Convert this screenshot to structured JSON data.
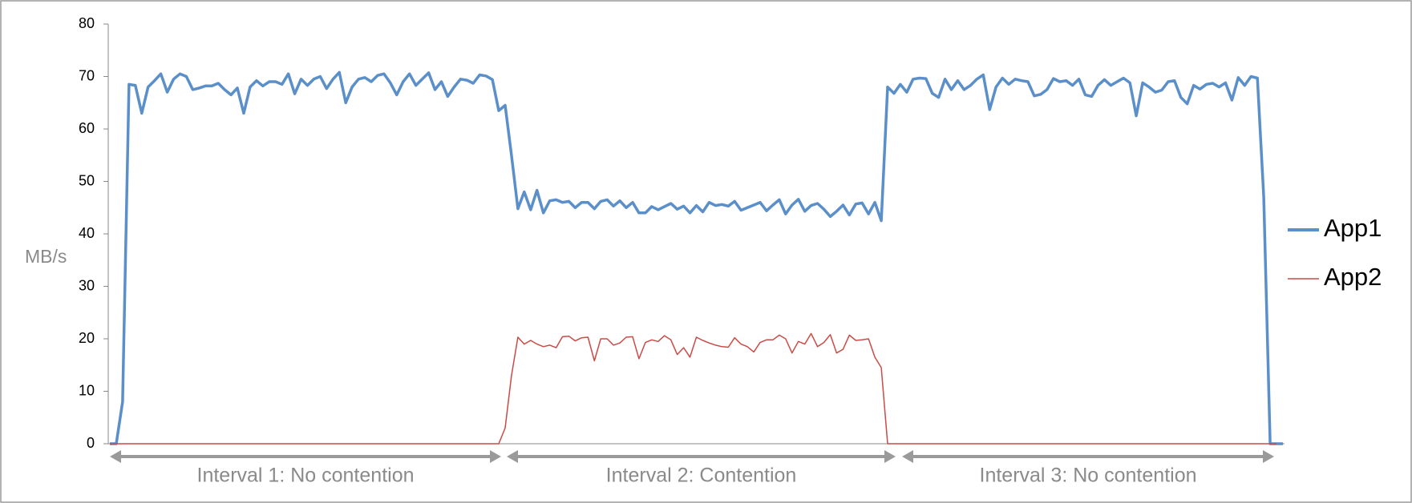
{
  "chart_data": {
    "type": "line",
    "y_label": "MB/s",
    "ylim": [
      0,
      80
    ],
    "yticks": [
      0,
      10,
      20,
      30,
      40,
      50,
      60,
      70,
      80
    ],
    "legend": "right",
    "annotations": [
      "Interval 1: No contention",
      "Interval 2: Contention",
      "Interval 3: No contention"
    ],
    "series": [
      {
        "name": "App1",
        "color": "#5b8fc9",
        "values": [
          0,
          0,
          8,
          68.5,
          68.3,
          63,
          68,
          69.2,
          70.5,
          67,
          69.5,
          70.5,
          70,
          67.5,
          67.8,
          68.2,
          68.2,
          68.7,
          67.5,
          66.5,
          67.8,
          63,
          68,
          69.2,
          68.2,
          69,
          69,
          68.5,
          70.5,
          66.7,
          69.5,
          68.3,
          69.5,
          70,
          67.7,
          69.5,
          70.8,
          65,
          68,
          69.5,
          69.8,
          69,
          70.2,
          70.5,
          68.8,
          66.5,
          69,
          70.5,
          68.3,
          69.5,
          70.7,
          67.5,
          69,
          66.2,
          68,
          69.5,
          69.3,
          68.7,
          70.3,
          70.1,
          69.4,
          63.5,
          64.5,
          55,
          44.8,
          48,
          44.6,
          48.3,
          44,
          46.3,
          46.5,
          46,
          46.2,
          45,
          46,
          46,
          44.8,
          46.2,
          46.5,
          45.3,
          46.3,
          45,
          46,
          44,
          44,
          45.2,
          44.6,
          45.2,
          45.8,
          44.7,
          45.3,
          44,
          45.4,
          44.2,
          46,
          45.4,
          45.6,
          45.3,
          46.2,
          44.5,
          45,
          45.5,
          46,
          44.4,
          45.5,
          46.5,
          43.8,
          45.5,
          46.6,
          44.3,
          45.4,
          45.8,
          44.7,
          43.3,
          44.3,
          45.5,
          43.6,
          45.7,
          45.9,
          43.8,
          46,
          42.5,
          68,
          66.8,
          68.5,
          67,
          69.5,
          69.7,
          69.6,
          66.8,
          66,
          69.5,
          67.5,
          69.2,
          67.5,
          68.3,
          69.5,
          70.3,
          63.7,
          68,
          69.7,
          68.5,
          69.5,
          69.2,
          69,
          66.3,
          66.6,
          67.5,
          69.6,
          69,
          69.2,
          68.3,
          69.5,
          66.5,
          66.2,
          68.3,
          69.4,
          68.3,
          69,
          69.7,
          68.8,
          62.5,
          68.8,
          68,
          67,
          67.4,
          69,
          69.2,
          66,
          64.8,
          68.3,
          67.6,
          68.5,
          68.7,
          68,
          68.8,
          65.5,
          69.8,
          68.3,
          70,
          69.7,
          47,
          0,
          0,
          0
        ]
      },
      {
        "name": "App2",
        "color": "#cc4a45",
        "values": [
          0,
          0,
          0,
          0,
          0,
          0,
          0,
          0,
          0,
          0,
          0,
          0,
          0,
          0,
          0,
          0,
          0,
          0,
          0,
          0,
          0,
          0,
          0,
          0,
          0,
          0,
          0,
          0,
          0,
          0,
          0,
          0,
          0,
          0,
          0,
          0,
          0,
          0,
          0,
          0,
          0,
          0,
          0,
          0,
          0,
          0,
          0,
          0,
          0,
          0,
          0,
          0,
          0,
          0,
          0,
          0,
          0,
          0,
          0,
          0,
          0,
          0,
          3,
          13,
          20.3,
          19,
          19.7,
          19,
          18.5,
          18.8,
          18.3,
          20.4,
          20.5,
          19.6,
          20.2,
          20.3,
          15.8,
          20,
          20,
          18.8,
          19.2,
          20.3,
          20.4,
          16.2,
          19.3,
          19.8,
          19.5,
          20.6,
          19.8,
          17,
          18.3,
          16.5,
          20.3,
          19.7,
          19.2,
          18.8,
          18.5,
          18.4,
          20.2,
          19,
          18.5,
          17.5,
          19.3,
          19.8,
          19.8,
          20.7,
          20,
          17.3,
          19.5,
          19,
          21,
          18.5,
          19.3,
          20.8,
          17.3,
          18,
          20.7,
          19.7,
          19.8,
          20,
          16.5,
          14.5,
          0,
          0,
          0,
          0,
          0,
          0,
          0,
          0,
          0,
          0,
          0,
          0,
          0,
          0,
          0,
          0,
          0,
          0,
          0,
          0,
          0,
          0,
          0,
          0,
          0,
          0,
          0,
          0,
          0,
          0,
          0,
          0,
          0,
          0,
          0,
          0,
          0,
          0,
          0,
          0,
          0,
          0,
          0,
          0,
          0,
          0,
          0,
          0,
          0,
          0,
          0,
          0,
          0,
          0,
          0,
          0,
          0,
          0,
          0,
          0,
          0,
          0
        ]
      }
    ]
  }
}
